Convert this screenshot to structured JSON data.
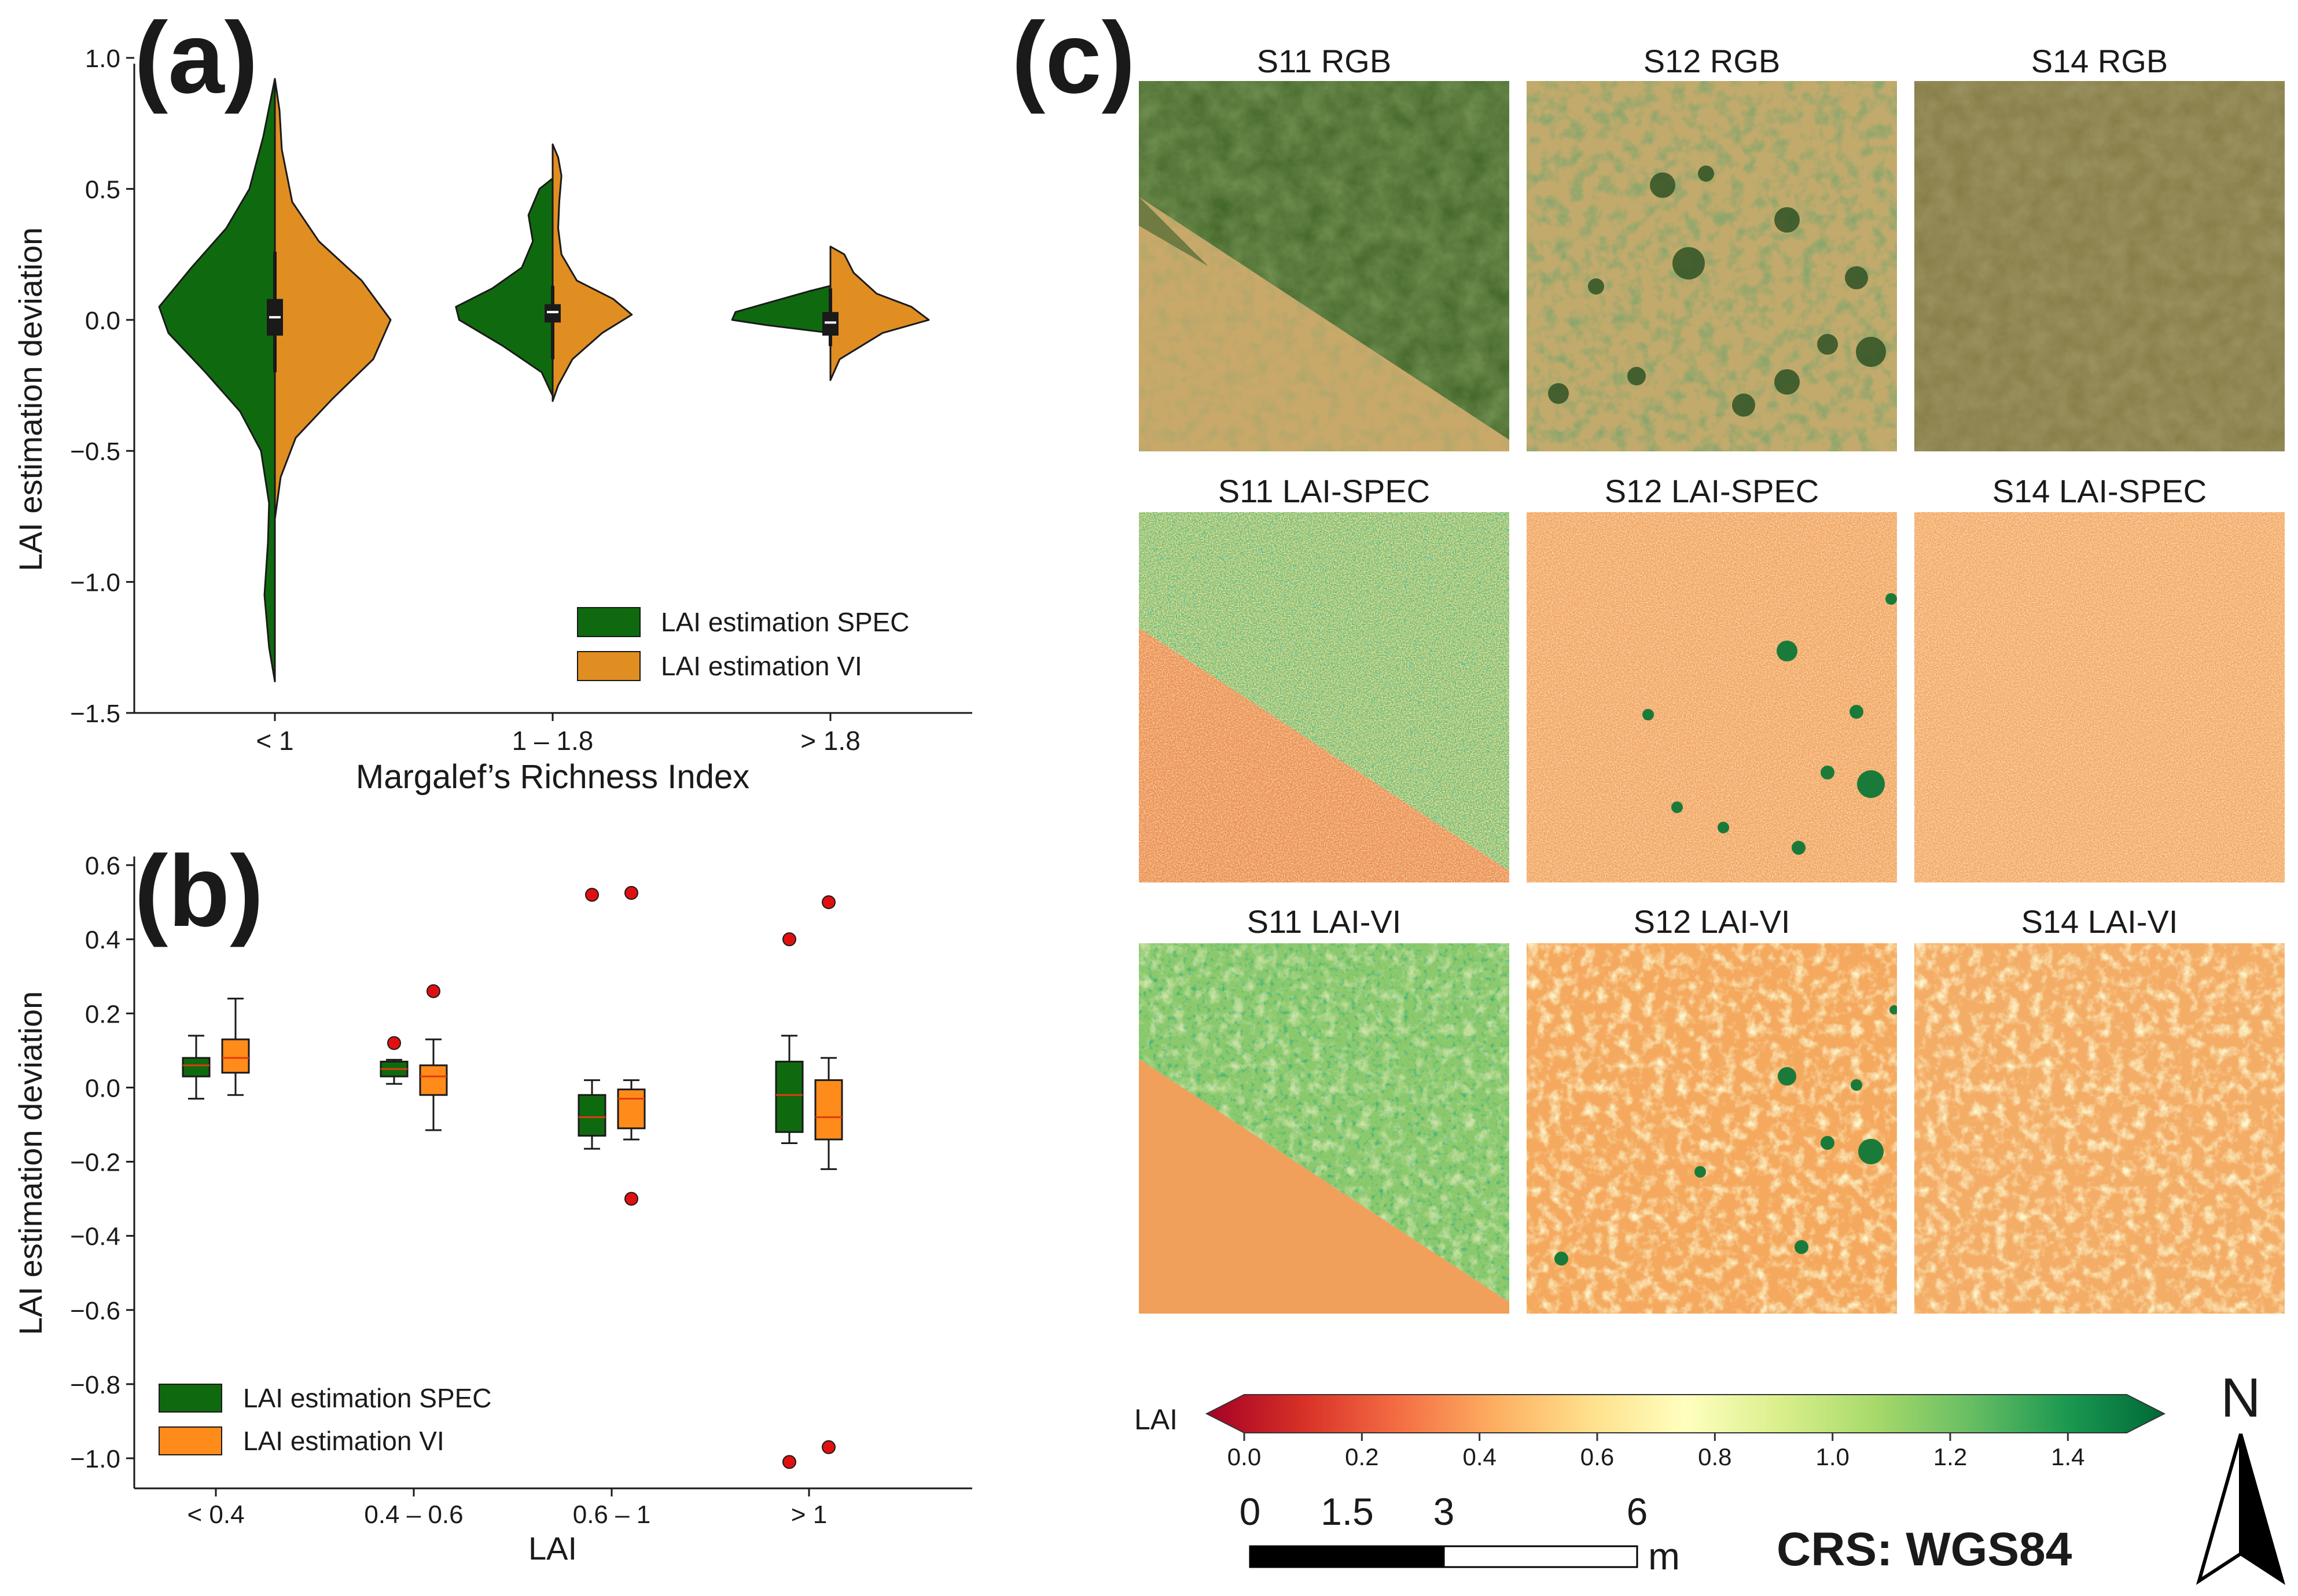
{
  "panels": {
    "a": {
      "label": "(a)",
      "chart_data": {
        "type": "violin",
        "title": "",
        "xlabel": "Margalef’s Richness Index",
        "ylabel": "LAI estimation deviation",
        "ylim": [
          -1.5,
          1.0
        ],
        "yticks": [
          1.0,
          0.5,
          0.0,
          -0.5,
          -1.0,
          -1.5
        ],
        "ytick_labels": [
          "1.0",
          "0.5",
          "0.0",
          "−0.5",
          "−1.0",
          "−1.5"
        ],
        "categories": [
          "< 1",
          "1 – 1.8",
          "> 1.8"
        ],
        "legend": [
          "LAI estimation SPEC",
          "LAI estimation VI"
        ],
        "legend_position": "lower-right",
        "series": [
          {
            "name": "LAI estimation SPEC",
            "side": "left",
            "color": "#0f6a0f",
            "ranges": [
              [
                -1.38,
                0.92
              ],
              [
                -0.29,
                0.54
              ],
              [
                -0.05,
                0.13
              ]
            ],
            "profiles": [
              [
                [
                  -1.38,
                  0.0
                ],
                [
                  -1.25,
                  0.05
                ],
                [
                  -1.05,
                  0.09
                ],
                [
                  -0.85,
                  0.06
                ],
                [
                  -0.7,
                  0.05
                ],
                [
                  -0.5,
                  0.12
                ],
                [
                  -0.35,
                  0.3
                ],
                [
                  -0.2,
                  0.6
                ],
                [
                  -0.05,
                  0.92
                ],
                [
                  0.05,
                  1.0
                ],
                [
                  0.2,
                  0.72
                ],
                [
                  0.35,
                  0.42
                ],
                [
                  0.5,
                  0.22
                ],
                [
                  0.7,
                  0.1
                ],
                [
                  0.92,
                  0.0
                ]
              ],
              [
                [
                  -0.29,
                  0.0
                ],
                [
                  -0.2,
                  0.1
                ],
                [
                  -0.1,
                  0.45
                ],
                [
                  0.0,
                  0.85
                ],
                [
                  0.05,
                  0.88
                ],
                [
                  0.12,
                  0.55
                ],
                [
                  0.2,
                  0.28
                ],
                [
                  0.3,
                  0.18
                ],
                [
                  0.4,
                  0.22
                ],
                [
                  0.5,
                  0.12
                ],
                [
                  0.54,
                  0.0
                ]
              ],
              [
                [
                  -0.05,
                  0.0
                ],
                [
                  -0.02,
                  0.55
                ],
                [
                  0.0,
                  0.85
                ],
                [
                  0.03,
                  0.82
                ],
                [
                  0.07,
                  0.5
                ],
                [
                  0.11,
                  0.18
                ],
                [
                  0.13,
                  0.0
                ]
              ]
            ]
          },
          {
            "name": "LAI estimation VI",
            "side": "right",
            "color": "#e08e22",
            "ranges": [
              [
                -0.76,
                0.92
              ],
              [
                -0.31,
                0.67
              ],
              [
                -0.23,
                0.28
              ]
            ],
            "profiles": [
              [
                [
                  -0.76,
                  0.0
                ],
                [
                  -0.6,
                  0.05
                ],
                [
                  -0.45,
                  0.18
                ],
                [
                  -0.3,
                  0.5
                ],
                [
                  -0.15,
                  0.85
                ],
                [
                  0.0,
                  1.0
                ],
                [
                  0.15,
                  0.75
                ],
                [
                  0.3,
                  0.38
                ],
                [
                  0.45,
                  0.15
                ],
                [
                  0.65,
                  0.06
                ],
                [
                  0.8,
                  0.04
                ],
                [
                  0.92,
                  0.0
                ]
              ],
              [
                [
                  -0.31,
                  0.0
                ],
                [
                  -0.25,
                  0.05
                ],
                [
                  -0.15,
                  0.18
                ],
                [
                  -0.05,
                  0.45
                ],
                [
                  0.02,
                  0.72
                ],
                [
                  0.08,
                  0.55
                ],
                [
                  0.15,
                  0.22
                ],
                [
                  0.25,
                  0.08
                ],
                [
                  0.35,
                  0.05
                ],
                [
                  0.45,
                  0.06
                ],
                [
                  0.55,
                  0.08
                ],
                [
                  0.62,
                  0.05
                ],
                [
                  0.67,
                  0.0
                ]
              ],
              [
                [
                  -0.23,
                  0.0
                ],
                [
                  -0.15,
                  0.08
                ],
                [
                  -0.05,
                  0.45
                ],
                [
                  0.0,
                  0.85
                ],
                [
                  0.05,
                  0.7
                ],
                [
                  0.1,
                  0.4
                ],
                [
                  0.18,
                  0.2
                ],
                [
                  0.25,
                  0.12
                ],
                [
                  0.28,
                  0.0
                ]
              ]
            ]
          }
        ],
        "boxes": [
          {
            "q1": -0.06,
            "median": 0.01,
            "q3": 0.08,
            "low": -0.2,
            "high": 0.26
          },
          {
            "q1": -0.01,
            "median": 0.03,
            "q3": 0.06,
            "low": -0.15,
            "high": 0.13
          },
          {
            "q1": -0.06,
            "median": -0.01,
            "q3": 0.03,
            "low": -0.1,
            "high": 0.12
          }
        ]
      }
    },
    "b": {
      "label": "(b)",
      "chart_data": {
        "type": "box",
        "xlabel": "LAI",
        "ylabel": "LAI estimation deviation",
        "ylim": [
          -1.08,
          0.62
        ],
        "yticks": [
          0.6,
          0.4,
          0.2,
          0.0,
          -0.2,
          -0.4,
          -0.6,
          -0.8,
          -1.0
        ],
        "ytick_labels": [
          "0.6",
          "0.4",
          "0.2",
          "0.0",
          "−0.2",
          "−0.4",
          "−0.6",
          "−0.8",
          "−1.0"
        ],
        "categories": [
          "< 0.4",
          "0.4 – 0.6",
          "0.6 – 1",
          "> 1"
        ],
        "legend": [
          "LAI estimation SPEC",
          "LAI estimation VI"
        ],
        "legend_position": "lower-left",
        "series": [
          {
            "name": "LAI estimation SPEC",
            "color": "#0f6a0f",
            "boxes": [
              {
                "low": -0.03,
                "q1": 0.03,
                "median": 0.06,
                "q3": 0.08,
                "high": 0.14,
                "outliers": []
              },
              {
                "low": 0.01,
                "q1": 0.03,
                "median": 0.05,
                "q3": 0.07,
                "high": 0.075,
                "outliers": [
                  0.12
                ]
              },
              {
                "low": -0.165,
                "q1": -0.13,
                "median": -0.08,
                "q3": -0.02,
                "high": 0.02,
                "outliers": [
                  0.52
                ]
              },
              {
                "low": -0.15,
                "q1": -0.12,
                "median": -0.02,
                "q3": 0.07,
                "high": 0.14,
                "outliers": [
                  0.4,
                  -1.01
                ]
              }
            ]
          },
          {
            "name": "LAI estimation VI",
            "color": "#ff8c1a",
            "boxes": [
              {
                "low": -0.02,
                "q1": 0.04,
                "median": 0.08,
                "q3": 0.13,
                "high": 0.24,
                "outliers": []
              },
              {
                "low": -0.115,
                "q1": -0.02,
                "median": 0.03,
                "q3": 0.06,
                "high": 0.13,
                "outliers": [
                  0.26
                ]
              },
              {
                "low": -0.14,
                "q1": -0.11,
                "median": -0.03,
                "q3": -0.005,
                "high": 0.02,
                "outliers": [
                  0.525,
                  -0.3
                ]
              },
              {
                "low": -0.22,
                "q1": -0.14,
                "median": -0.08,
                "q3": 0.02,
                "high": 0.08,
                "outliers": [
                  0.5,
                  -0.97
                ]
              }
            ]
          }
        ]
      }
    },
    "c": {
      "label": "(c)",
      "rows": [
        {
          "titles": [
            "S11 RGB",
            "S12 RGB",
            "S14 RGB"
          ]
        },
        {
          "titles": [
            "S11 LAI-SPEC",
            "S12 LAI-SPEC",
            "S14 LAI-SPEC"
          ]
        },
        {
          "titles": [
            "S11 LAI-VI",
            "S12 LAI-VI",
            "S14 LAI-VI"
          ]
        }
      ],
      "colorbar": {
        "label": "LAI",
        "range": [
          0.0,
          1.5
        ],
        "ticks": [
          "0.0",
          "0.2",
          "0.4",
          "0.6",
          "0.8",
          "1.0",
          "1.2",
          "1.4"
        ],
        "colors": [
          "#a50026",
          "#d73027",
          "#f46d43",
          "#fdae61",
          "#fee08b",
          "#ffffbf",
          "#d9ef8b",
          "#a6d96a",
          "#66bd63",
          "#1a9850",
          "#006837"
        ]
      },
      "scalebar": {
        "ticks": [
          "0",
          "1.5",
          "3",
          "6"
        ],
        "unit": "m"
      },
      "north_label": "N",
      "crs": "CRS: WGS84"
    }
  }
}
